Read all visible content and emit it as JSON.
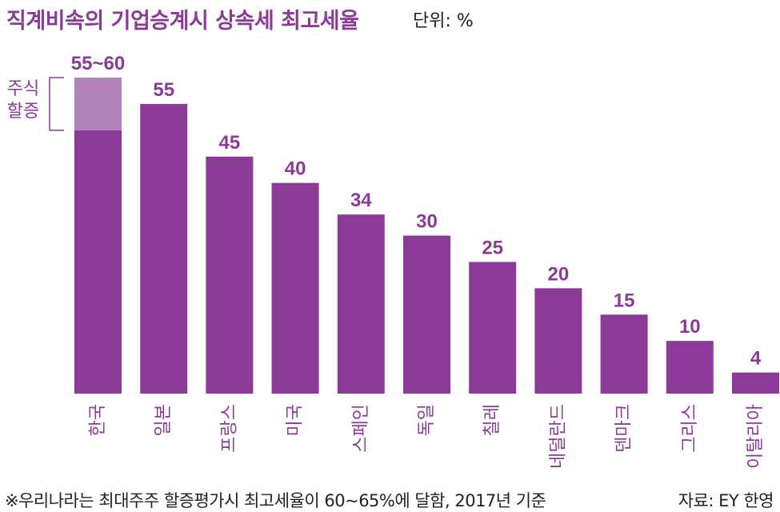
{
  "title": "직계비속의 기업승계시 상속세 최고세율",
  "unit_label": "단위: %",
  "footnote": "※우리나라는 최대주주 할증평가시 최고세율이 60~65%에 달함, 2017년 기준",
  "source": "자료: EY 한영",
  "colors": {
    "bar": "#8b3b97",
    "premium": "#b283ba",
    "text": "#8b3b97"
  },
  "chart_data": {
    "type": "bar",
    "categories": [
      "한국",
      "일본",
      "프랑스",
      "미국",
      "스페인",
      "독일",
      "칠레",
      "네덜란드",
      "덴마크",
      "그리스",
      "이탈리아"
    ],
    "values": [
      50,
      55,
      45,
      40,
      34,
      30,
      25,
      20,
      15,
      10,
      4
    ],
    "value_labels": [
      "55~60",
      "55",
      "45",
      "40",
      "34",
      "30",
      "25",
      "20",
      "15",
      "10",
      "4"
    ],
    "stacked_extra": [
      {
        "category": "한국",
        "from": 50,
        "to": 60,
        "label": "주식 할증"
      }
    ],
    "bracket_label_lines": [
      "주식",
      "할증"
    ],
    "ylim": [
      0,
      60
    ],
    "grid": false,
    "legend": "none"
  }
}
